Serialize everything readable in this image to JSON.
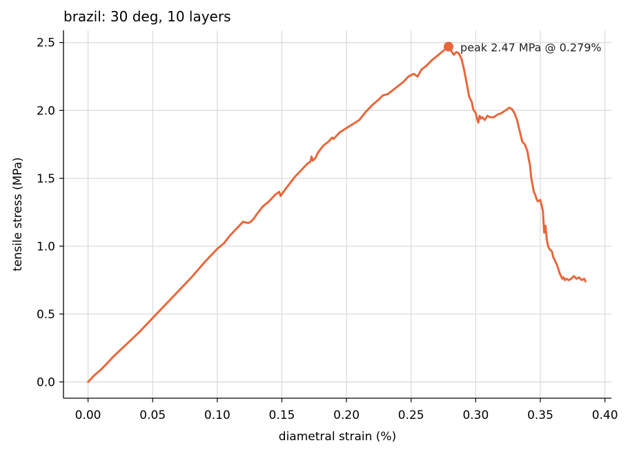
{
  "chart_data": {
    "type": "line",
    "title": "brazil: 30 deg, 10 layers",
    "xlabel": "diametral strain (%)",
    "ylabel": "tensile stress (MPa)",
    "xlim": [
      -0.019,
      0.405
    ],
    "ylim": [
      -0.12,
      2.59
    ],
    "xticks": [
      0.0,
      0.05,
      0.1,
      0.15,
      0.2,
      0.25,
      0.3,
      0.35,
      0.4
    ],
    "xtick_labels": [
      "0.00",
      "0.05",
      "0.10",
      "0.15",
      "0.20",
      "0.25",
      "0.30",
      "0.35",
      "0.40"
    ],
    "yticks": [
      0.0,
      0.5,
      1.0,
      1.5,
      2.0,
      2.5
    ],
    "ytick_labels": [
      "0.0",
      "0.5",
      "1.0",
      "1.5",
      "2.0",
      "2.5"
    ],
    "grid": true,
    "line_color": "#e8663a",
    "series": [
      {
        "x": [
          0.0,
          0.005,
          0.01,
          0.015,
          0.02,
          0.03,
          0.04,
          0.05,
          0.06,
          0.07,
          0.08,
          0.09,
          0.1,
          0.105,
          0.11,
          0.115,
          0.12,
          0.124,
          0.126,
          0.128,
          0.131,
          0.135,
          0.14,
          0.145,
          0.148,
          0.149,
          0.152,
          0.156,
          0.16,
          0.165,
          0.17,
          0.172,
          0.173,
          0.174,
          0.176,
          0.178,
          0.182,
          0.186,
          0.189,
          0.19,
          0.192,
          0.195,
          0.2,
          0.205,
          0.21,
          0.215,
          0.22,
          0.225,
          0.228,
          0.232,
          0.236,
          0.24,
          0.244,
          0.248,
          0.252,
          0.255,
          0.258,
          0.262,
          0.266,
          0.27,
          0.275,
          0.279,
          0.281,
          0.283,
          0.285,
          0.287,
          0.289,
          0.291,
          0.293,
          0.295,
          0.297,
          0.298,
          0.3,
          0.301,
          0.302,
          0.303,
          0.304,
          0.305,
          0.307,
          0.309,
          0.311,
          0.314,
          0.317,
          0.32,
          0.323,
          0.326,
          0.328,
          0.33,
          0.332,
          0.334,
          0.336,
          0.338,
          0.34,
          0.341,
          0.342,
          0.343,
          0.344,
          0.345,
          0.346,
          0.347,
          0.348,
          0.35,
          0.352,
          0.353,
          0.354,
          0.355,
          0.356,
          0.357,
          0.358,
          0.359,
          0.36,
          0.361,
          0.362,
          0.363,
          0.364,
          0.365,
          0.366,
          0.367,
          0.368,
          0.369,
          0.37,
          0.372,
          0.374,
          0.376,
          0.378,
          0.38,
          0.382,
          0.384,
          0.385
        ],
        "y": [
          0.0,
          0.05,
          0.09,
          0.14,
          0.19,
          0.28,
          0.37,
          0.47,
          0.57,
          0.67,
          0.77,
          0.88,
          0.98,
          1.02,
          1.08,
          1.13,
          1.18,
          1.17,
          1.18,
          1.2,
          1.24,
          1.29,
          1.33,
          1.38,
          1.4,
          1.37,
          1.41,
          1.46,
          1.51,
          1.56,
          1.61,
          1.62,
          1.66,
          1.63,
          1.65,
          1.69,
          1.74,
          1.77,
          1.8,
          1.79,
          1.81,
          1.84,
          1.87,
          1.9,
          1.93,
          1.99,
          2.04,
          2.08,
          2.11,
          2.12,
          2.15,
          2.18,
          2.21,
          2.25,
          2.27,
          2.25,
          2.3,
          2.33,
          2.37,
          2.4,
          2.44,
          2.47,
          2.44,
          2.41,
          2.43,
          2.42,
          2.38,
          2.3,
          2.2,
          2.1,
          2.06,
          2.01,
          1.98,
          1.94,
          1.91,
          1.96,
          1.94,
          1.95,
          1.93,
          1.96,
          1.95,
          1.95,
          1.97,
          1.98,
          2.0,
          2.02,
          2.01,
          1.98,
          1.93,
          1.85,
          1.77,
          1.75,
          1.7,
          1.64,
          1.6,
          1.5,
          1.45,
          1.4,
          1.38,
          1.35,
          1.33,
          1.34,
          1.26,
          1.1,
          1.15,
          1.05,
          1.0,
          0.98,
          0.97,
          0.96,
          0.92,
          0.9,
          0.88,
          0.86,
          0.83,
          0.8,
          0.78,
          0.76,
          0.77,
          0.75,
          0.76,
          0.75,
          0.76,
          0.78,
          0.76,
          0.77,
          0.75,
          0.76,
          0.74
        ]
      }
    ],
    "annotations": [
      {
        "text": "peak 2.47 MPa @ 0.279%",
        "x": 0.279,
        "y": 2.47
      }
    ]
  }
}
